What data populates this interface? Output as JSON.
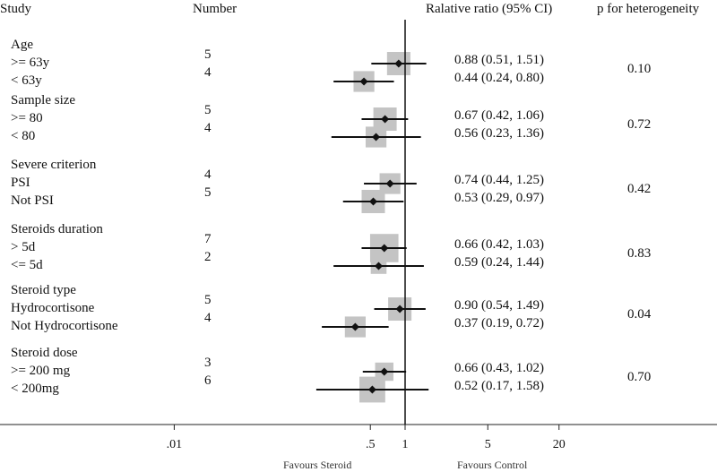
{
  "headers": {
    "study": "Study",
    "number": "Number",
    "ratio": "Ralative ratio (95% CI)",
    "het": "p for heterogeneity"
  },
  "groups": [
    {
      "title": "Age",
      "p_het": "0.10",
      "rows": [
        {
          "label": ">= 63y",
          "n": "5",
          "ci": "0.88 (0.51, 1.51)"
        },
        {
          "label": "< 63y",
          "n": "4",
          "ci": "0.44 (0.24, 0.80)"
        }
      ]
    },
    {
      "title": "Sample size",
      "p_het": "0.72",
      "rows": [
        {
          "label": ">= 80",
          "n": "5",
          "ci": "0.67 (0.42, 1.06)"
        },
        {
          "label": "< 80",
          "n": "4",
          "ci": "0.56 (0.23, 1.36)"
        }
      ]
    },
    {
      "title": "Severe criterion",
      "p_het": "0.42",
      "rows": [
        {
          "label": "PSI",
          "n": "4",
          "ci": "0.74 (0.44, 1.25)"
        },
        {
          "label": "Not PSI",
          "n": "5",
          "ci": "0.53 (0.29, 0.97)"
        }
      ]
    },
    {
      "title": "Steroids duration",
      "p_het": "0.83",
      "rows": [
        {
          "label": "> 5d",
          "n": "7",
          "ci": "0.66 (0.42, 1.03)"
        },
        {
          "label": "<= 5d",
          "n": "2",
          "ci": "0.59 (0.24, 1.44)"
        }
      ]
    },
    {
      "title": "Steroid type",
      "p_het": "0.04",
      "rows": [
        {
          "label": "Hydrocortisone",
          "n": "5",
          "ci": "0.90 (0.54, 1.49)"
        },
        {
          "label": "Not Hydrocortisone",
          "n": "4",
          "ci": "0.37 (0.19, 0.72)"
        }
      ]
    },
    {
      "title": "Steroid dose",
      "p_het": "0.70",
      "rows": [
        {
          "label": ">= 200 mg",
          "n": "3",
          "ci": "0.66 (0.43, 1.02)"
        },
        {
          "label": "< 200mg",
          "n": "6",
          "ci": "0.52 (0.17, 1.58)"
        }
      ]
    }
  ],
  "axis": {
    "ticks": [
      {
        "value": 0.01,
        "label": ".01"
      },
      {
        "value": 0.5,
        "label": ".5"
      },
      {
        "value": 1,
        "label": "1"
      },
      {
        "value": 5,
        "label": "5"
      },
      {
        "value": 20,
        "label": "20"
      }
    ],
    "favours_left": "Favours Steroid",
    "favours_right": "Favours Control"
  },
  "chart_data": {
    "type": "forest",
    "title": "",
    "xscale": "log",
    "xlabel_left": "Favours Steroid",
    "xlabel_right": "Favours Control",
    "reference_line": 1,
    "subgroups": [
      {
        "name": ">= 63y",
        "group": "Age",
        "studies": 5,
        "est": 0.88,
        "lo": 0.51,
        "hi": 1.51
      },
      {
        "name": "< 63y",
        "group": "Age",
        "studies": 4,
        "est": 0.44,
        "lo": 0.24,
        "hi": 0.8
      },
      {
        "name": ">= 80",
        "group": "Sample size",
        "studies": 5,
        "est": 0.67,
        "lo": 0.42,
        "hi": 1.06
      },
      {
        "name": "< 80",
        "group": "Sample size",
        "studies": 4,
        "est": 0.56,
        "lo": 0.23,
        "hi": 1.36
      },
      {
        "name": "PSI",
        "group": "Severe criterion",
        "studies": 4,
        "est": 0.74,
        "lo": 0.44,
        "hi": 1.25
      },
      {
        "name": "Not PSI",
        "group": "Severe criterion",
        "studies": 5,
        "est": 0.53,
        "lo": 0.29,
        "hi": 0.97
      },
      {
        "name": "> 5d",
        "group": "Steroids duration",
        "studies": 7,
        "est": 0.66,
        "lo": 0.42,
        "hi": 1.03
      },
      {
        "name": "<= 5d",
        "group": "Steroids duration",
        "studies": 2,
        "est": 0.59,
        "lo": 0.24,
        "hi": 1.44
      },
      {
        "name": "Hydrocortisone",
        "group": "Steroid type",
        "studies": 5,
        "est": 0.9,
        "lo": 0.54,
        "hi": 1.49
      },
      {
        "name": "Not Hydrocortisone",
        "group": "Steroid type",
        "studies": 4,
        "est": 0.37,
        "lo": 0.19,
        "hi": 0.72
      },
      {
        "name": ">= 200 mg",
        "group": "Steroid dose",
        "studies": 3,
        "est": 0.66,
        "lo": 0.43,
        "hi": 1.02
      },
      {
        "name": "< 200mg",
        "group": "Steroid dose",
        "studies": 6,
        "est": 0.52,
        "lo": 0.17,
        "hi": 1.58
      }
    ],
    "heterogeneity_p": [
      {
        "group": "Age",
        "p": 0.1
      },
      {
        "group": "Sample size",
        "p": 0.72
      },
      {
        "group": "Severe criterion",
        "p": 0.42
      },
      {
        "group": "Steroids duration",
        "p": 0.83
      },
      {
        "group": "Steroid type",
        "p": 0.04
      },
      {
        "group": "Steroid dose",
        "p": 0.7
      }
    ]
  }
}
